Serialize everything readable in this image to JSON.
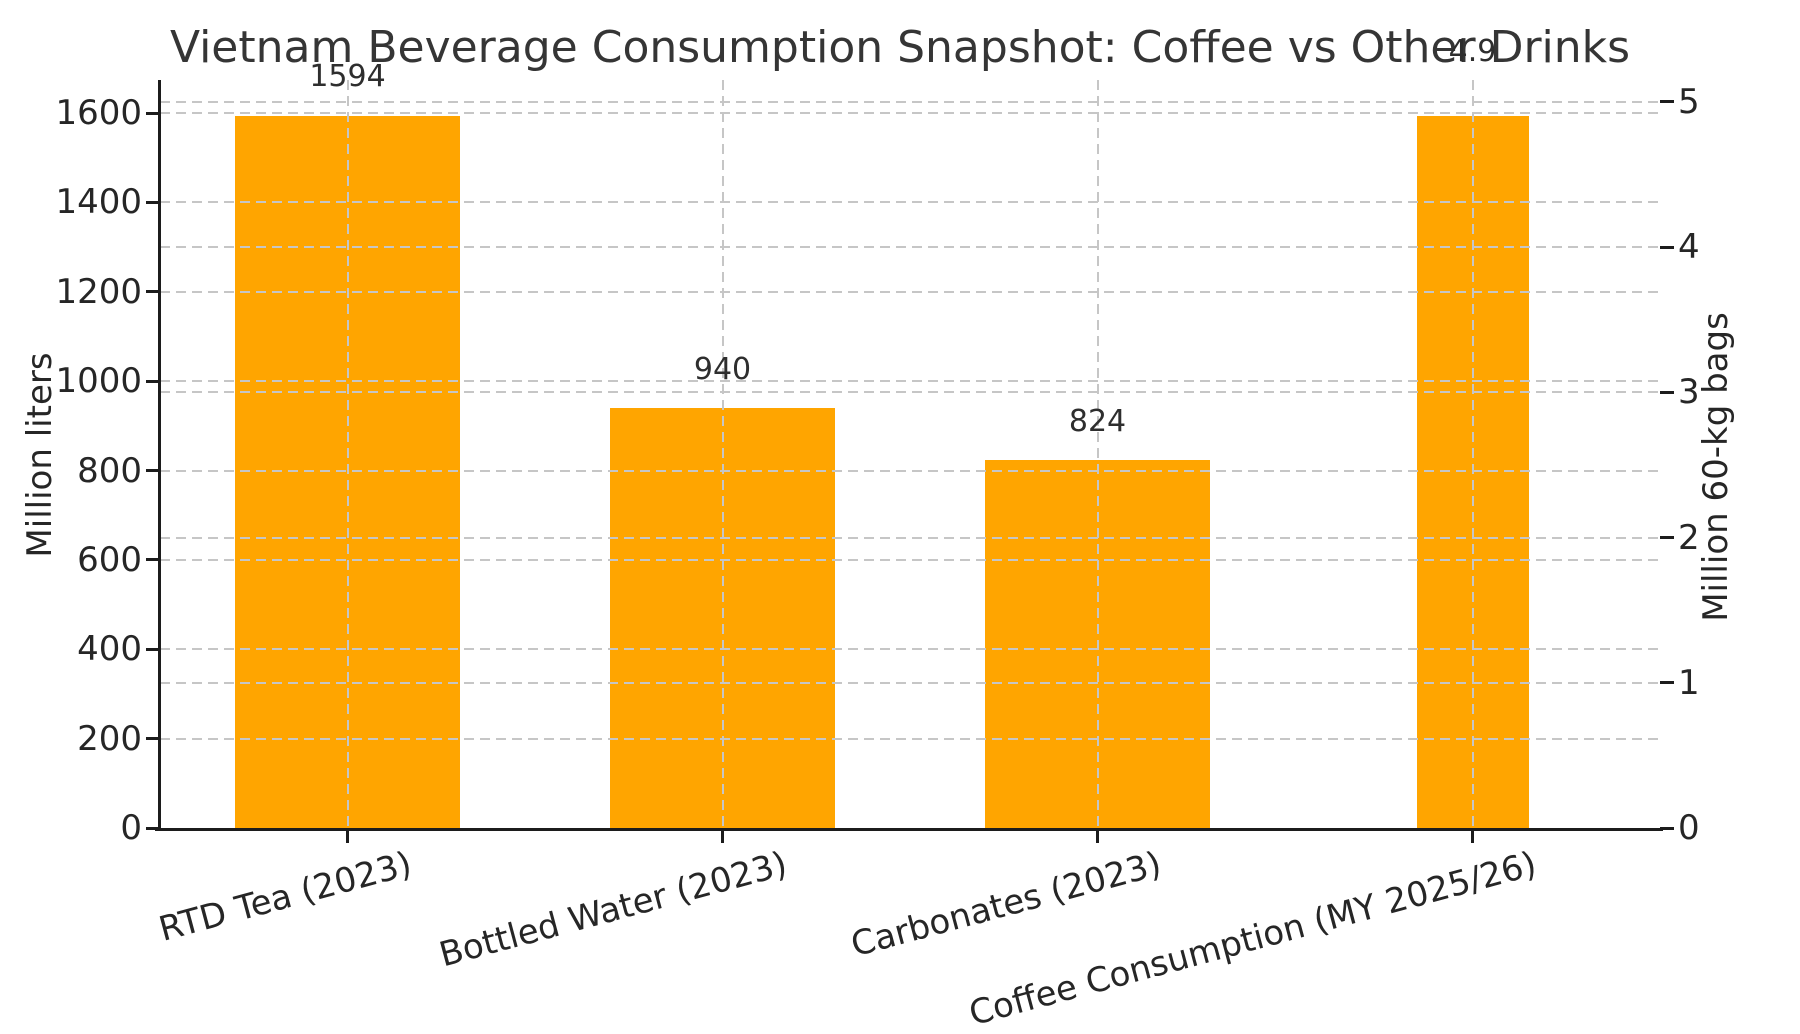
{
  "chart_data": {
    "type": "bar",
    "title": "Vietnam Beverage Consumption Snapshot: Coffee vs Other Drinks",
    "categories": [
      "RTD Tea (2023)",
      "Bottled Water (2023)",
      "Carbonates (2023)",
      "Coffee Consumption (MY 2025/26)"
    ],
    "bars": [
      {
        "category": "RTD Tea (2023)",
        "value": 1594,
        "axis": "left",
        "value_label": "1594"
      },
      {
        "category": "Bottled Water (2023)",
        "value": 940,
        "axis": "left",
        "value_label": "940"
      },
      {
        "category": "Carbonates (2023)",
        "value": 824,
        "axis": "left",
        "value_label": "824"
      },
      {
        "category": "Coffee Consumption (MY 2025/26)",
        "value": 4.9,
        "axis": "right",
        "value_label": "4.9"
      }
    ],
    "left_axis": {
      "label": "Million liters",
      "ticks": [
        0,
        200,
        400,
        600,
        800,
        1000,
        1200,
        1400,
        1600
      ],
      "range": [
        0,
        1674
      ]
    },
    "right_axis": {
      "label": "Million 60-kg bags",
      "ticks": [
        0,
        1,
        2,
        3,
        4,
        5
      ],
      "range": [
        0,
        5.15
      ]
    },
    "bar_color": "#FFA500",
    "grid": "dashed, both axes, horizontal and vertical, drawn above bars",
    "legend": "none"
  }
}
